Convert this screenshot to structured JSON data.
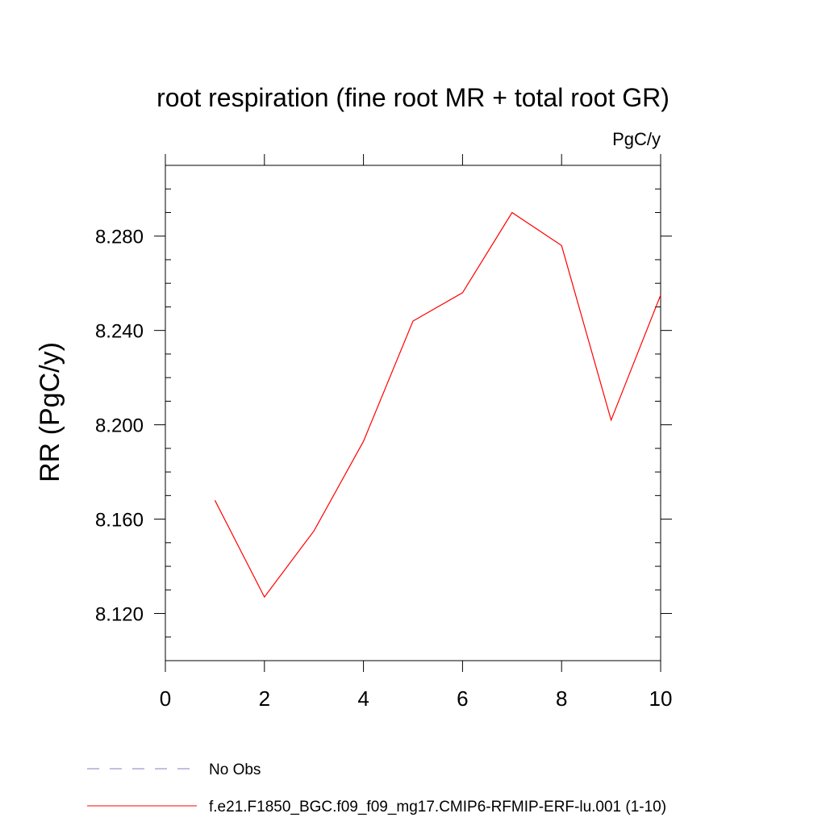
{
  "chart_data": {
    "type": "line",
    "title": "root respiration (fine root MR + total root GR)",
    "units_label": "PgC/y",
    "ylabel": "RR  (PgC/y)",
    "xlabel": "",
    "xlim": [
      0,
      10
    ],
    "ylim": [
      8.1,
      8.31
    ],
    "x_ticks": [
      0,
      2,
      4,
      6,
      8,
      10
    ],
    "x_tick_labels": [
      "0",
      "2",
      "4",
      "6",
      "8",
      "10"
    ],
    "y_ticks": [
      8.12,
      8.16,
      8.2,
      8.24,
      8.28
    ],
    "y_tick_labels": [
      "8.120",
      "8.160",
      "8.200",
      "8.240",
      "8.280"
    ],
    "grid": false,
    "legend_position": "bottom",
    "series": [
      {
        "name": "f.e21.F1850_BGC.f09_f09_mg17.CMIP6-RFMIP-ERF-lu.001 (1-10)",
        "color": "#ff0000",
        "style": "solid",
        "x": [
          1,
          2,
          3,
          4,
          5,
          6,
          7,
          8,
          9,
          10
        ],
        "values": [
          8.168,
          8.127,
          8.155,
          8.193,
          8.244,
          8.256,
          8.29,
          8.276,
          8.202,
          8.255
        ]
      }
    ],
    "legend": [
      {
        "label": "No Obs",
        "color": "#8080c0",
        "style": "dashed"
      },
      {
        "label": "f.e21.F1850_BGC.f09_f09_mg17.CMIP6-RFMIP-ERF-lu.001 (1-10)",
        "color": "#ff0000",
        "style": "solid"
      }
    ]
  }
}
